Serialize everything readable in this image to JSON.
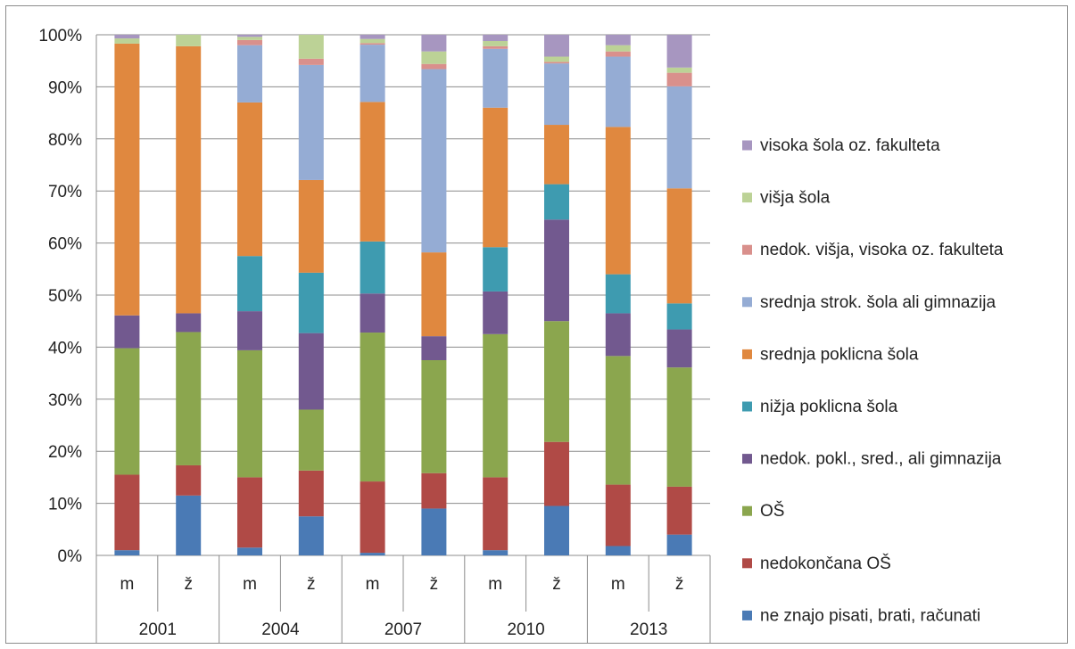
{
  "chart_data": {
    "type": "bar",
    "stacked": true,
    "percent": true,
    "title": "",
    "xlabel": "",
    "ylabel": "",
    "ylim": [
      0,
      100
    ],
    "y_ticks": [
      "0%",
      "10%",
      "20%",
      "30%",
      "40%",
      "50%",
      "60%",
      "70%",
      "80%",
      "90%",
      "100%"
    ],
    "grid": "horizontal",
    "legend_position": "right",
    "groups": [
      "2001",
      "2004",
      "2007",
      "2010",
      "2013"
    ],
    "categories": [
      "m",
      "ž",
      "m",
      "ž",
      "m",
      "ž",
      "m",
      "ž",
      "m",
      "ž"
    ],
    "series": [
      {
        "name": "ne znajo pisati, brati, računati",
        "color": "#4a7ab5",
        "values": [
          1,
          11.5,
          1.5,
          7.5,
          0.5,
          9,
          1,
          9.5,
          1.8,
          4
        ]
      },
      {
        "name": "nedokončana OŠ",
        "color": "#b04a46",
        "values": [
          14.5,
          5.8,
          13.5,
          8.8,
          13.7,
          6.8,
          14,
          12.3,
          11.8,
          9.2
        ]
      },
      {
        "name": "OŠ",
        "color": "#8ba64e",
        "values": [
          24.3,
          25.6,
          24.4,
          11.7,
          28.6,
          21.7,
          27.5,
          23.2,
          24.7,
          22.9
        ]
      },
      {
        "name": "nedok. pokl., sred., ali gimnazija",
        "color": "#72598f",
        "values": [
          6.3,
          3.6,
          7.5,
          14.7,
          7.5,
          4.6,
          8.2,
          19.5,
          8.2,
          7.3
        ]
      },
      {
        "name": "nižja poklicna šola",
        "color": "#3e9bb0",
        "values": [
          0,
          0,
          10.6,
          11.6,
          10,
          0,
          8.5,
          6.8,
          7.5,
          5
        ]
      },
      {
        "name": "srednja poklicna šola",
        "color": "#e0883f",
        "values": [
          52.2,
          51.3,
          29.5,
          17.8,
          26.8,
          16.1,
          26.8,
          11.4,
          28.3,
          22.1
        ]
      },
      {
        "name": "srednja strok. šola ali gimnazija",
        "color": "#95acd4",
        "values": [
          0,
          0,
          11,
          22.1,
          11,
          35.2,
          11.3,
          11.8,
          13.5,
          19.6
        ]
      },
      {
        "name": "nedok. višja, visoka oz. fakulteta",
        "color": "#d9908c",
        "values": [
          0,
          0,
          1,
          1.2,
          0.3,
          1,
          0.5,
          0.3,
          1,
          2.6
        ]
      },
      {
        "name": "višja šola",
        "color": "#bcd296",
        "values": [
          1,
          2.2,
          0.6,
          4.6,
          0.8,
          2.4,
          1,
          1,
          1.2,
          1
        ]
      },
      {
        "name": "visoka šola oz. fakulteta",
        "color": "#a796c0",
        "values": [
          0.7,
          0,
          0.4,
          0,
          0.8,
          3.2,
          1.2,
          4.2,
          2,
          6.3
        ]
      }
    ]
  }
}
